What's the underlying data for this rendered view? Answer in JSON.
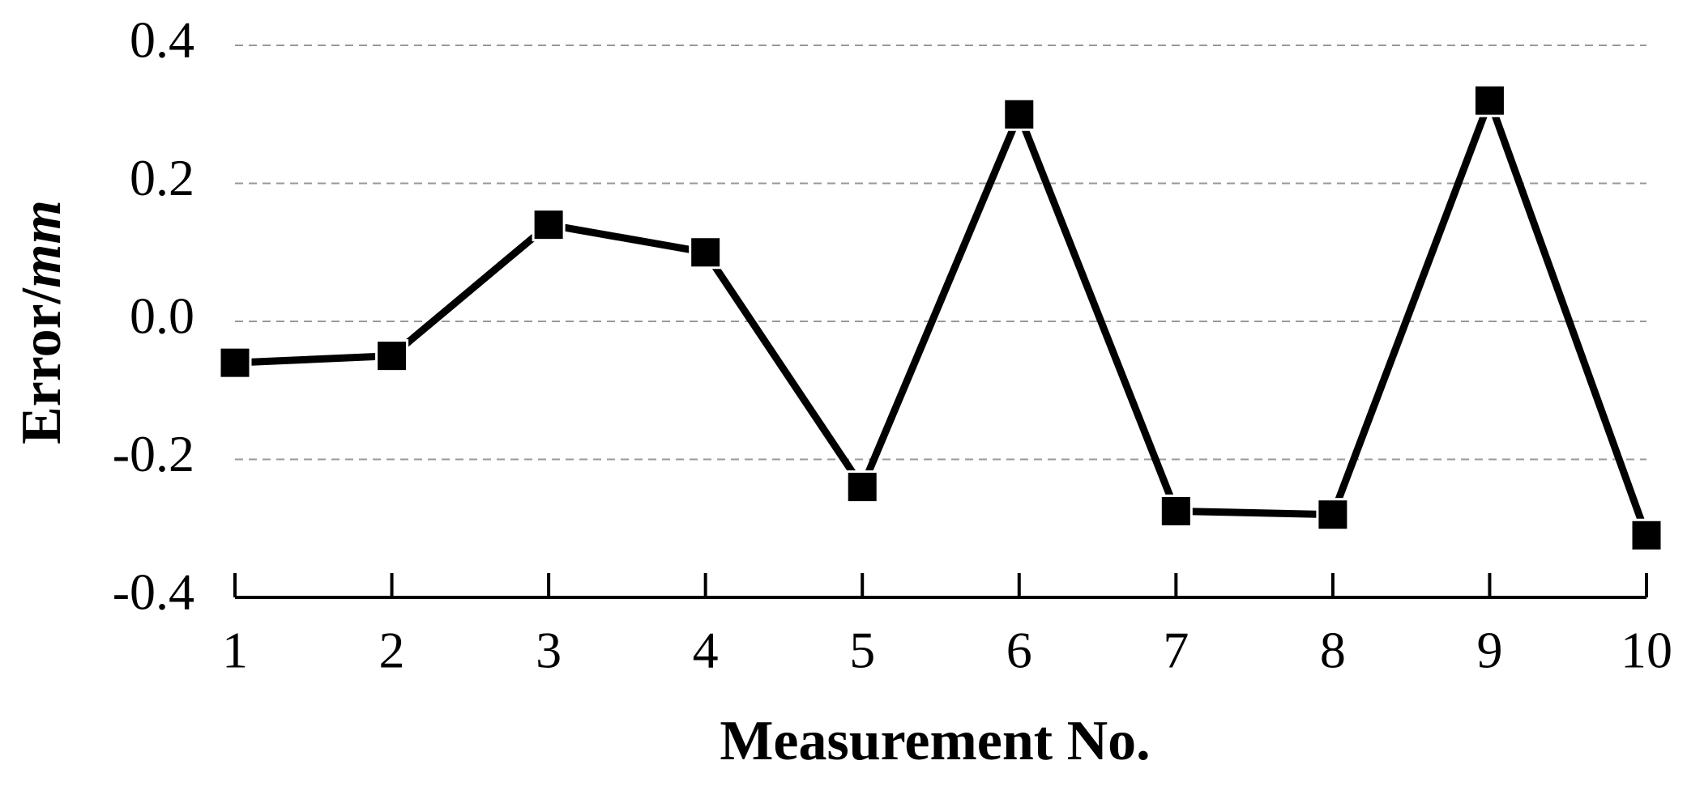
{
  "chart_data": {
    "type": "line",
    "x_label": "Measurement No.",
    "y_label": "Error/",
    "y_unit": "mm",
    "x": [
      1,
      2,
      3,
      4,
      5,
      6,
      7,
      8,
      9,
      10
    ],
    "series": [
      {
        "color": "#000000",
        "values": [
          -0.06,
          -0.05,
          0.14,
          0.1,
          -0.24,
          0.3,
          -0.275,
          -0.28,
          0.32,
          -0.31
        ]
      }
    ],
    "xlim": [
      1,
      10
    ],
    "xticks": [
      1,
      2,
      3,
      4,
      5,
      6,
      7,
      8,
      9,
      10
    ],
    "ylim": [
      -0.4,
      0.4
    ],
    "yticks": [
      -0.4,
      -0.2,
      {
        "value": 0,
        "label": "0.0"
      },
      0.2,
      0.4
    ],
    "grid": true
  }
}
